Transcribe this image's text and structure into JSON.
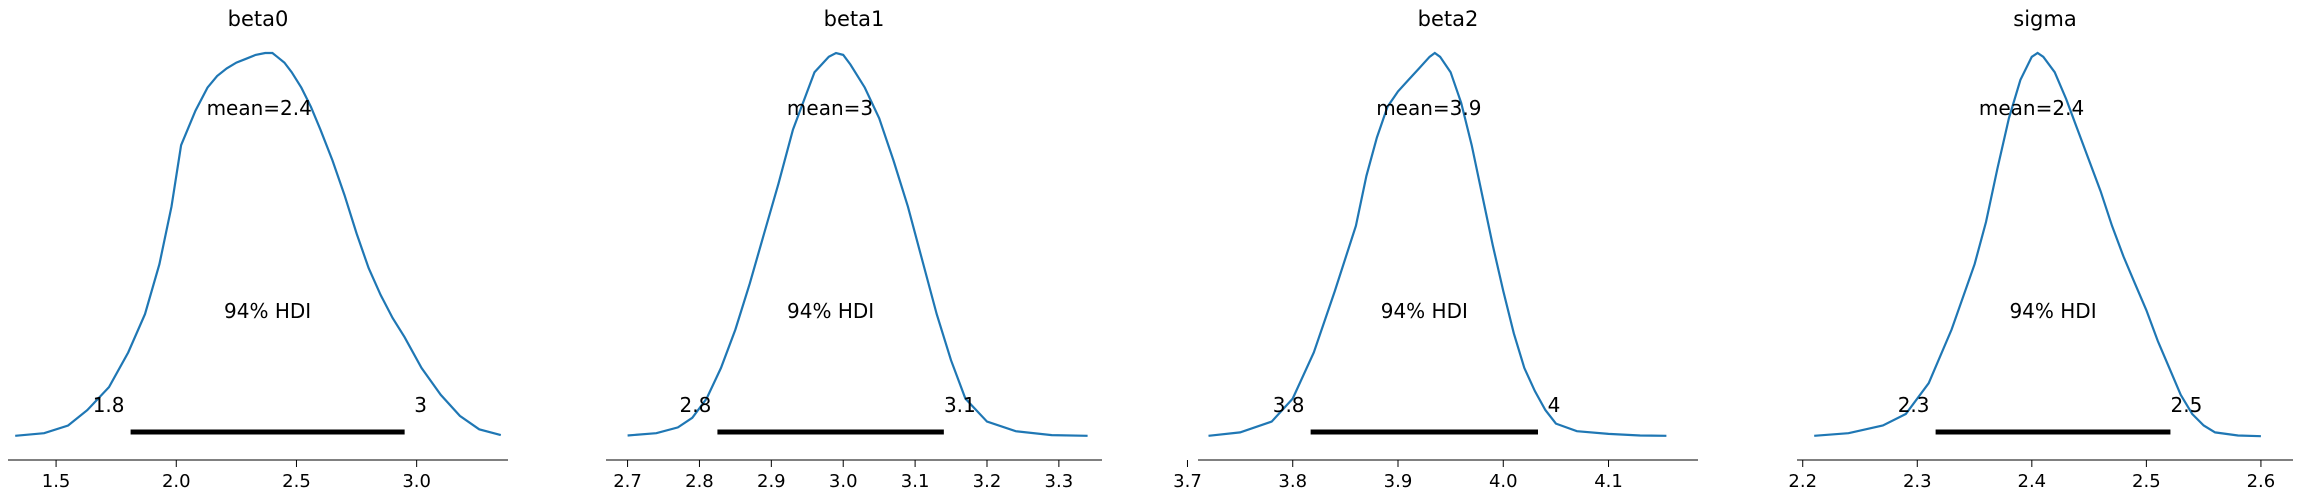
{
  "figure": {
    "line_color": "#1f77b4",
    "hdi_label": "94% HDI"
  },
  "chart_data": [
    {
      "type": "line",
      "title": "beta0",
      "mean_label": "mean=2.4",
      "hdi_low_label": "1.8",
      "hdi_high_label": "3",
      "hdi": [
        1.81,
        2.95
      ],
      "xlim": [
        1.3,
        3.38
      ],
      "ticks": [
        1.5,
        2.0,
        2.5,
        3.0
      ],
      "tick_labels": [
        "1.5",
        "2.0",
        "2.5",
        "3.0"
      ],
      "x": [
        1.33,
        1.45,
        1.55,
        1.63,
        1.72,
        1.8,
        1.87,
        1.93,
        1.98,
        2.02,
        2.08,
        2.13,
        2.17,
        2.21,
        2.25,
        2.29,
        2.33,
        2.37,
        2.4,
        2.42,
        2.45,
        2.48,
        2.52,
        2.56,
        2.6,
        2.65,
        2.7,
        2.75,
        2.8,
        2.85,
        2.9,
        2.95,
        3.02,
        3.1,
        3.18,
        3.26,
        3.35
      ],
      "y": [
        0.003,
        0.01,
        0.03,
        0.07,
        0.13,
        0.22,
        0.32,
        0.45,
        0.6,
        0.76,
        0.85,
        0.91,
        0.94,
        0.96,
        0.975,
        0.985,
        0.995,
        1.0,
        1.0,
        0.99,
        0.975,
        0.95,
        0.91,
        0.86,
        0.8,
        0.72,
        0.63,
        0.53,
        0.44,
        0.37,
        0.31,
        0.26,
        0.18,
        0.11,
        0.055,
        0.02,
        0.005
      ]
    },
    {
      "type": "line",
      "title": "beta1",
      "mean_label": "mean=3",
      "hdi_low_label": "2.8",
      "hdi_high_label": "3.1",
      "hdi": [
        2.825,
        3.14
      ],
      "xlim": [
        2.67,
        3.36
      ],
      "ticks": [
        2.7,
        2.8,
        2.9,
        3.0,
        3.1,
        3.2,
        3.3
      ],
      "tick_labels": [
        "2.7",
        "2.8",
        "2.9",
        "3.0",
        "3.1",
        "3.2",
        "3.3"
      ],
      "x": [
        2.7,
        2.74,
        2.77,
        2.79,
        2.81,
        2.83,
        2.85,
        2.87,
        2.89,
        2.91,
        2.93,
        2.95,
        2.96,
        2.98,
        2.99,
        3.0,
        3.01,
        3.03,
        3.05,
        3.07,
        3.09,
        3.11,
        3.13,
        3.15,
        3.17,
        3.2,
        3.24,
        3.29,
        3.34
      ],
      "y": [
        0.004,
        0.01,
        0.025,
        0.05,
        0.1,
        0.18,
        0.28,
        0.4,
        0.53,
        0.66,
        0.8,
        0.9,
        0.95,
        0.99,
        1.0,
        0.995,
        0.97,
        0.91,
        0.83,
        0.72,
        0.6,
        0.46,
        0.32,
        0.2,
        0.1,
        0.04,
        0.015,
        0.005,
        0.003
      ]
    },
    {
      "type": "line",
      "title": "beta2",
      "mean_label": "mean=3.9",
      "hdi_low_label": "3.8",
      "hdi_high_label": "4",
      "hdi": [
        3.817,
        4.033
      ],
      "xlim": [
        3.71,
        4.185
      ],
      "ticks": [
        3.7,
        3.8,
        3.9,
        4.0,
        4.1
      ],
      "tick_labels": [
        "3.7",
        "3.8",
        "3.9",
        "4.0",
        "4.1"
      ],
      "x": [
        3.72,
        3.75,
        3.78,
        3.8,
        3.82,
        3.84,
        3.86,
        3.87,
        3.88,
        3.89,
        3.9,
        3.91,
        3.92,
        3.93,
        3.935,
        3.94,
        3.95,
        3.96,
        3.97,
        3.98,
        3.99,
        4.0,
        4.01,
        4.02,
        4.03,
        4.04,
        4.05,
        4.07,
        4.1,
        4.13,
        4.155
      ],
      "y": [
        0.003,
        0.012,
        0.04,
        0.1,
        0.22,
        0.38,
        0.55,
        0.68,
        0.78,
        0.86,
        0.9,
        0.93,
        0.96,
        0.99,
        1.0,
        0.99,
        0.95,
        0.87,
        0.76,
        0.63,
        0.5,
        0.38,
        0.27,
        0.18,
        0.12,
        0.07,
        0.035,
        0.015,
        0.008,
        0.004,
        0.003
      ]
    },
    {
      "type": "line",
      "title": "sigma",
      "mean_label": "mean=2.4",
      "hdi_low_label": "2.3",
      "hdi_high_label": "2.5",
      "hdi": [
        2.316,
        2.521
      ],
      "xlim": [
        2.195,
        2.628
      ],
      "ticks": [
        2.2,
        2.3,
        2.4,
        2.5,
        2.6
      ],
      "tick_labels": [
        "2.2",
        "2.3",
        "2.4",
        "2.5",
        "2.6"
      ],
      "x": [
        2.21,
        2.24,
        2.27,
        2.29,
        2.31,
        2.33,
        2.35,
        2.36,
        2.37,
        2.38,
        2.39,
        2.4,
        2.405,
        2.41,
        2.42,
        2.43,
        2.44,
        2.45,
        2.46,
        2.47,
        2.48,
        2.49,
        2.5,
        2.51,
        2.52,
        2.53,
        2.54,
        2.55,
        2.56,
        2.58,
        2.6
      ],
      "y": [
        0.003,
        0.01,
        0.03,
        0.06,
        0.14,
        0.28,
        0.45,
        0.56,
        0.7,
        0.83,
        0.93,
        0.99,
        1.0,
        0.99,
        0.95,
        0.88,
        0.8,
        0.72,
        0.64,
        0.55,
        0.47,
        0.4,
        0.33,
        0.25,
        0.18,
        0.11,
        0.06,
        0.03,
        0.012,
        0.004,
        0.002
      ]
    }
  ]
}
